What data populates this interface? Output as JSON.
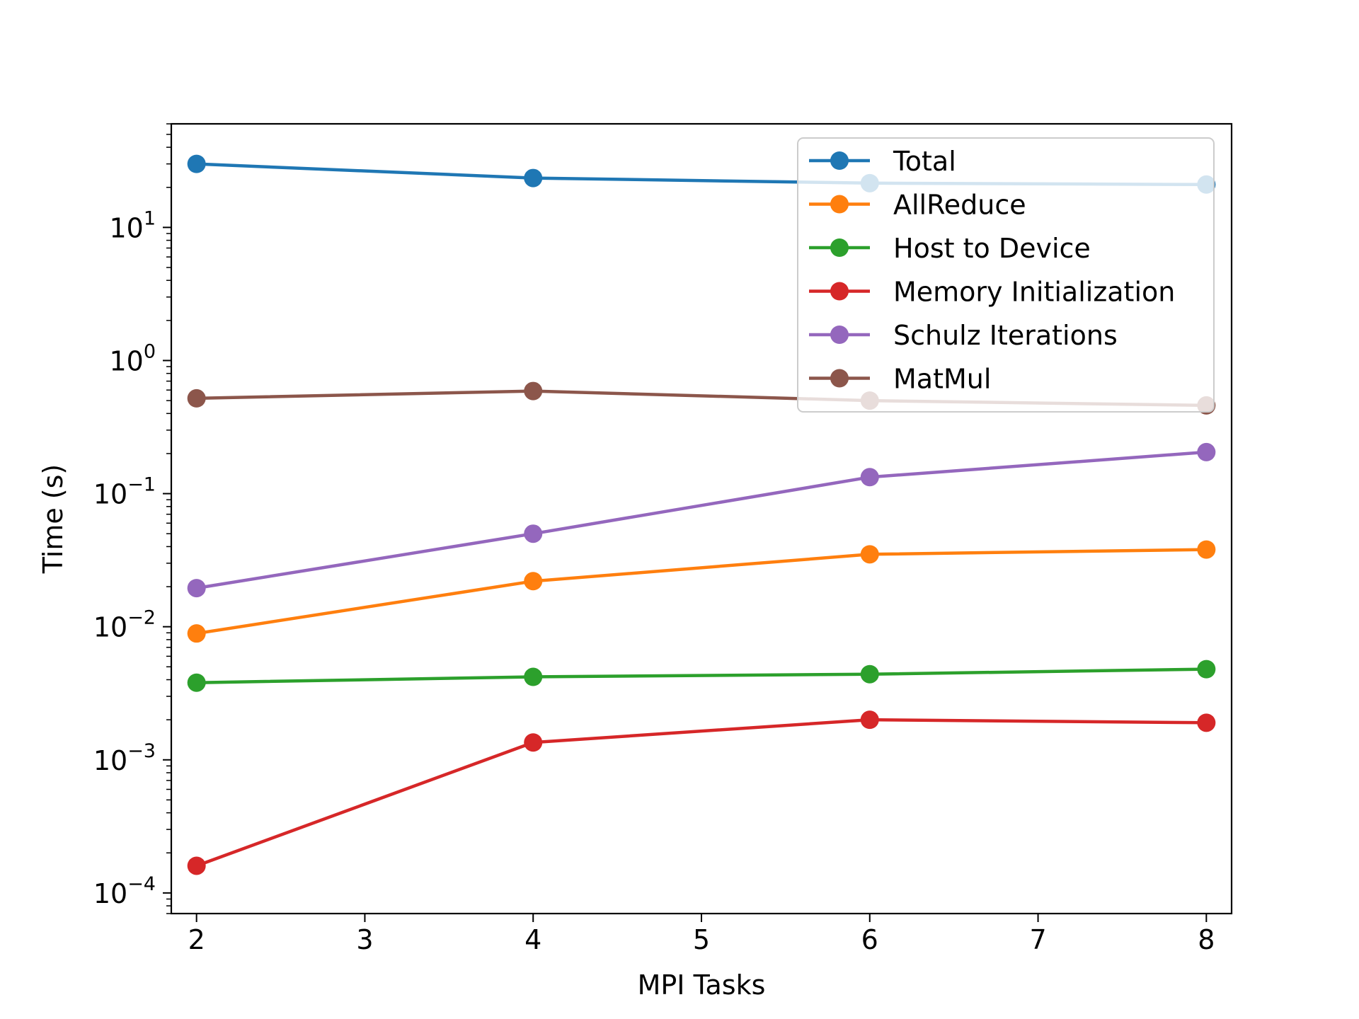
{
  "chart_data": {
    "type": "line",
    "title": "",
    "xlabel": "MPI Tasks",
    "ylabel": "Time (s)",
    "xlim": [
      1.85,
      8.15
    ],
    "ylim": [
      7e-05,
      60
    ],
    "yscale": "log",
    "grid": false,
    "legend_position": "top-right",
    "x": [
      2,
      4,
      6,
      8
    ],
    "x_ticks": [
      2,
      3,
      4,
      5,
      6,
      7,
      8
    ],
    "x_tick_labels": [
      "2",
      "3",
      "4",
      "5",
      "6",
      "7",
      "8"
    ],
    "y_ticks": [
      0.0001,
      0.001,
      0.01,
      0.1,
      1,
      10
    ],
    "y_tick_labels": [
      {
        "base": "10",
        "exp": "−4"
      },
      {
        "base": "10",
        "exp": "−3"
      },
      {
        "base": "10",
        "exp": "−2"
      },
      {
        "base": "10",
        "exp": "−1"
      },
      {
        "base": "10",
        "exp": "0"
      },
      {
        "base": "10",
        "exp": "1"
      }
    ],
    "series": [
      {
        "name": "Total",
        "color": "#1f77b4",
        "values": [
          30.0,
          23.5,
          21.5,
          21.0
        ]
      },
      {
        "name": "AllReduce",
        "color": "#ff7f0e",
        "values": [
          0.0089,
          0.022,
          0.035,
          0.038
        ]
      },
      {
        "name": "Host to Device",
        "color": "#2ca02c",
        "values": [
          0.0038,
          0.0042,
          0.0044,
          0.0048
        ]
      },
      {
        "name": "Memory Initialization",
        "color": "#d62728",
        "values": [
          0.00016,
          0.00135,
          0.002,
          0.0019
        ]
      },
      {
        "name": "Schulz Iterations",
        "color": "#9467bd",
        "values": [
          0.0195,
          0.05,
          0.133,
          0.205
        ]
      },
      {
        "name": "MatMul",
        "color": "#8c564b",
        "values": [
          0.52,
          0.59,
          0.5,
          0.46
        ]
      }
    ]
  }
}
